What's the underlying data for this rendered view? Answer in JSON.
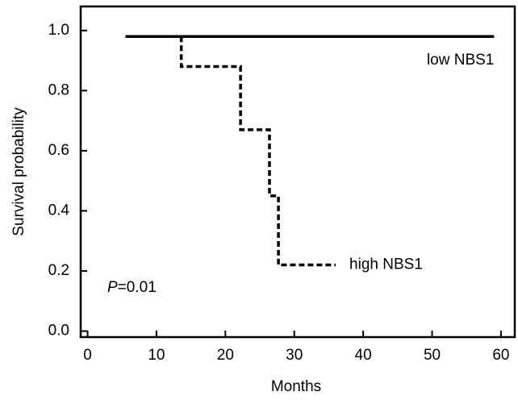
{
  "chart_data": {
    "type": "line",
    "x_label": "Months",
    "y_label": "Survival probability",
    "xlim": [
      -1,
      62
    ],
    "ylim": [
      -0.02,
      1.08
    ],
    "xticks": [
      0,
      10,
      20,
      30,
      40,
      50,
      60
    ],
    "yticks": [
      {
        "value": 0,
        "label": "0.0"
      },
      {
        "value": 0.2,
        "label": "0.2"
      },
      {
        "value": 0.4,
        "label": "0.4"
      },
      {
        "value": 0.6,
        "label": "0.6"
      },
      {
        "value": 0.8,
        "label": "0.8"
      },
      {
        "value": 1,
        "label": "1.0"
      }
    ],
    "series": [
      {
        "name": "low NBS1",
        "color": "#000000",
        "dash": false,
        "x": [
          5.5,
          59
        ],
        "values": [
          0.98,
          0.98
        ]
      },
      {
        "name": "high NBS1",
        "color": "#000000",
        "dash": true,
        "x": [
          13.6,
          13.6,
          22.2,
          22.2,
          26.4,
          26.4,
          27.7,
          27.7,
          36
        ],
        "values": [
          0.98,
          0.88,
          0.88,
          0.67,
          0.67,
          0.45,
          0.45,
          0.22,
          0.22
        ]
      }
    ],
    "series_labels": [
      {
        "x": 59,
        "y": 0.9
      },
      {
        "x": 38,
        "y": 0.22
      }
    ],
    "p_value": {
      "italic": "P",
      "rest": "=0.01"
    }
  }
}
